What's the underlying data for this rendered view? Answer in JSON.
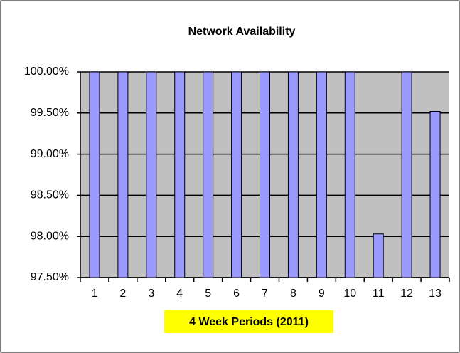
{
  "chart_data": {
    "type": "bar",
    "title": "Network Availability",
    "x_label": "4 Week Periods (2011)",
    "categories": [
      "1",
      "2",
      "3",
      "4",
      "5",
      "6",
      "7",
      "8",
      "9",
      "10",
      "11",
      "12",
      "13"
    ],
    "values": [
      100,
      100,
      100,
      100,
      100,
      100,
      100,
      100,
      100,
      100,
      98.03,
      100,
      99.52
    ],
    "color": "#9999ff",
    "ylim": [
      97.5,
      100
    ],
    "yticks": [
      {
        "value": 97.5,
        "label": "97.50%"
      },
      {
        "value": 98,
        "label": "98.00%"
      },
      {
        "value": 98.5,
        "label": "98.50%"
      },
      {
        "value": 99,
        "label": "99.00%"
      },
      {
        "value": 99.5,
        "label": "99.50%"
      },
      {
        "value": 100,
        "label": "100.00%"
      }
    ],
    "grid": true
  }
}
